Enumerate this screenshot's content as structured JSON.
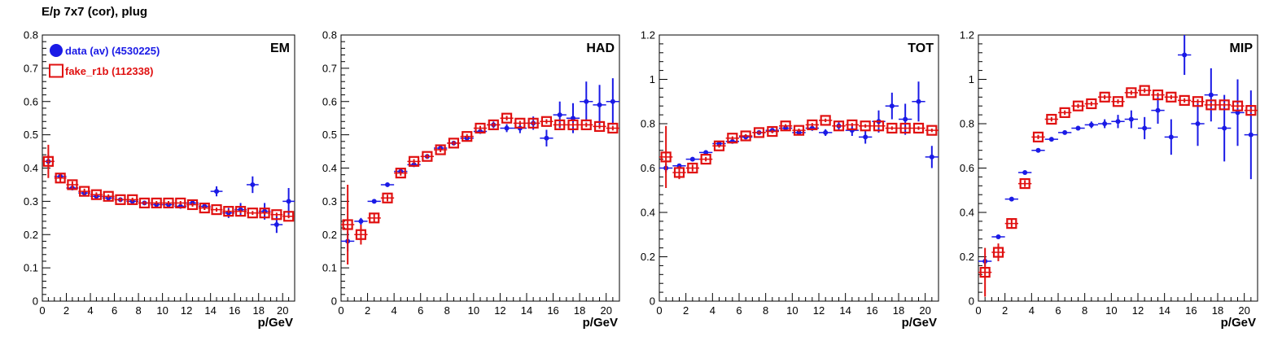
{
  "figure_title": "E/p 7x7 (cor), plug",
  "colors": {
    "data": "#1a1ae6",
    "fake": "#e01010",
    "axis": "#000000"
  },
  "legend": [
    {
      "label": "data (av) (4530225)",
      "marker": "filled-circle",
      "color": "#1a1ae6"
    },
    {
      "label": "fake_r1b (112338)",
      "marker": "open-square",
      "color": "#e01010"
    }
  ],
  "chart_data": [
    {
      "type": "scatter",
      "title": "EM",
      "xlabel": "p/GeV",
      "ylabel": "",
      "xlim": [
        0,
        21
      ],
      "ylim": [
        0,
        0.8
      ],
      "xticks": [
        0,
        2,
        4,
        6,
        8,
        10,
        12,
        14,
        16,
        18,
        20
      ],
      "yticks": [
        0,
        0.1,
        0.2,
        0.3,
        0.4,
        0.5,
        0.6,
        0.7,
        0.8
      ],
      "ytick_labels": [
        "0",
        "0.1",
        "0.2",
        "0.3",
        "0.4",
        "0.5",
        "0.6",
        "0.7",
        "0.8"
      ],
      "grid": false,
      "legend": "top-left",
      "series": [
        {
          "name": "data (av) (4530225)",
          "marker": "filled-circle",
          "x": [
            0.5,
            1.5,
            2.5,
            3.5,
            4.5,
            5.5,
            6.5,
            7.5,
            8.5,
            9.5,
            10.5,
            11.5,
            12.5,
            13.5,
            14.5,
            15.5,
            16.5,
            17.5,
            18.5,
            19.5,
            20.5
          ],
          "y": [
            0.42,
            0.375,
            0.34,
            0.325,
            0.315,
            0.31,
            0.305,
            0.3,
            0.295,
            0.29,
            0.29,
            0.285,
            0.295,
            0.285,
            0.33,
            0.265,
            0.275,
            0.35,
            0.27,
            0.23,
            0.3
          ],
          "err": [
            0.02,
            0.01,
            0.006,
            0.005,
            0.005,
            0.005,
            0.005,
            0.005,
            0.005,
            0.005,
            0.006,
            0.007,
            0.008,
            0.01,
            0.015,
            0.015,
            0.02,
            0.025,
            0.025,
            0.025,
            0.04
          ]
        },
        {
          "name": "fake_r1b (112338)",
          "marker": "open-square",
          "x": [
            0.5,
            1.5,
            2.5,
            3.5,
            4.5,
            5.5,
            6.5,
            7.5,
            8.5,
            9.5,
            10.5,
            11.5,
            12.5,
            13.5,
            14.5,
            15.5,
            16.5,
            17.5,
            18.5,
            19.5,
            20.5
          ],
          "y": [
            0.42,
            0.37,
            0.35,
            0.33,
            0.32,
            0.315,
            0.305,
            0.305,
            0.295,
            0.295,
            0.295,
            0.295,
            0.29,
            0.28,
            0.275,
            0.27,
            0.27,
            0.265,
            0.265,
            0.26,
            0.255
          ],
          "err": [
            0.05,
            0.015,
            0.01,
            0.008,
            0.007,
            0.006,
            0.006,
            0.006,
            0.006,
            0.006,
            0.006,
            0.006,
            0.006,
            0.006,
            0.006,
            0.006,
            0.006,
            0.006,
            0.006,
            0.006,
            0.006
          ]
        }
      ]
    },
    {
      "type": "scatter",
      "title": "HAD",
      "xlabel": "p/GeV",
      "ylabel": "",
      "xlim": [
        0,
        21
      ],
      "ylim": [
        0,
        0.8
      ],
      "xticks": [
        0,
        2,
        4,
        6,
        8,
        10,
        12,
        14,
        16,
        18,
        20
      ],
      "yticks": [
        0,
        0.1,
        0.2,
        0.3,
        0.4,
        0.5,
        0.6,
        0.7,
        0.8
      ],
      "ytick_labels": [
        "0",
        "0.1",
        "0.2",
        "0.3",
        "0.4",
        "0.5",
        "0.6",
        "0.7",
        "0.8"
      ],
      "grid": false,
      "series": [
        {
          "name": "data (av) (4530225)",
          "marker": "filled-circle",
          "x": [
            0.5,
            1.5,
            2.5,
            3.5,
            4.5,
            5.5,
            6.5,
            7.5,
            8.5,
            9.5,
            10.5,
            11.5,
            12.5,
            13.5,
            14.5,
            15.5,
            16.5,
            17.5,
            18.5,
            19.5,
            20.5
          ],
          "y": [
            0.18,
            0.24,
            0.3,
            0.35,
            0.39,
            0.41,
            0.435,
            0.46,
            0.475,
            0.49,
            0.51,
            0.53,
            0.52,
            0.52,
            0.535,
            0.49,
            0.56,
            0.55,
            0.6,
            0.59,
            0.6
          ],
          "err": [
            0.03,
            0.01,
            0.006,
            0.005,
            0.005,
            0.005,
            0.005,
            0.005,
            0.006,
            0.006,
            0.007,
            0.01,
            0.012,
            0.015,
            0.02,
            0.025,
            0.04,
            0.045,
            0.06,
            0.06,
            0.07
          ]
        },
        {
          "name": "fake_r1b (112338)",
          "marker": "open-square",
          "x": [
            0.5,
            1.5,
            2.5,
            3.5,
            4.5,
            5.5,
            6.5,
            7.5,
            8.5,
            9.5,
            10.5,
            11.5,
            12.5,
            13.5,
            14.5,
            15.5,
            16.5,
            17.5,
            18.5,
            19.5,
            20.5
          ],
          "y": [
            0.23,
            0.2,
            0.25,
            0.31,
            0.385,
            0.42,
            0.435,
            0.455,
            0.475,
            0.495,
            0.52,
            0.53,
            0.55,
            0.535,
            0.535,
            0.54,
            0.53,
            0.53,
            0.53,
            0.525,
            0.52
          ],
          "err": [
            0.12,
            0.03,
            0.015,
            0.01,
            0.008,
            0.007,
            0.007,
            0.007,
            0.007,
            0.007,
            0.007,
            0.007,
            0.007,
            0.007,
            0.007,
            0.007,
            0.007,
            0.007,
            0.007,
            0.007,
            0.007
          ]
        }
      ]
    },
    {
      "type": "scatter",
      "title": "TOT",
      "xlabel": "p/GeV",
      "ylabel": "",
      "xlim": [
        0,
        21
      ],
      "ylim": [
        0,
        1.2
      ],
      "xticks": [
        0,
        2,
        4,
        6,
        8,
        10,
        12,
        14,
        16,
        18,
        20
      ],
      "yticks": [
        0,
        0.2,
        0.4,
        0.6,
        0.8,
        1.0,
        1.2
      ],
      "ytick_labels": [
        "0",
        "0.2",
        "0.4",
        "0.6",
        "0.8",
        "1",
        "1.2"
      ],
      "grid": false,
      "series": [
        {
          "name": "data (av) (4530225)",
          "marker": "filled-circle",
          "x": [
            0.5,
            1.5,
            2.5,
            3.5,
            4.5,
            5.5,
            6.5,
            7.5,
            8.5,
            9.5,
            10.5,
            11.5,
            12.5,
            13.5,
            14.5,
            15.5,
            16.5,
            17.5,
            18.5,
            19.5,
            20.5
          ],
          "y": [
            0.6,
            0.61,
            0.64,
            0.67,
            0.71,
            0.72,
            0.74,
            0.76,
            0.77,
            0.78,
            0.76,
            0.78,
            0.76,
            0.79,
            0.77,
            0.74,
            0.81,
            0.88,
            0.82,
            0.9,
            0.65
          ],
          "err": [
            0.02,
            0.01,
            0.006,
            0.006,
            0.006,
            0.006,
            0.006,
            0.007,
            0.008,
            0.009,
            0.01,
            0.012,
            0.015,
            0.02,
            0.025,
            0.03,
            0.05,
            0.06,
            0.07,
            0.09,
            0.05
          ]
        },
        {
          "name": "fake_r1b (112338)",
          "marker": "open-square",
          "x": [
            0.5,
            1.5,
            2.5,
            3.5,
            4.5,
            5.5,
            6.5,
            7.5,
            8.5,
            9.5,
            10.5,
            11.5,
            12.5,
            13.5,
            14.5,
            15.5,
            16.5,
            17.5,
            18.5,
            19.5,
            20.5
          ],
          "y": [
            0.65,
            0.58,
            0.6,
            0.64,
            0.7,
            0.735,
            0.745,
            0.76,
            0.765,
            0.79,
            0.77,
            0.795,
            0.815,
            0.79,
            0.795,
            0.79,
            0.79,
            0.78,
            0.78,
            0.78,
            0.77
          ],
          "err": [
            0.14,
            0.03,
            0.015,
            0.01,
            0.008,
            0.008,
            0.008,
            0.008,
            0.008,
            0.008,
            0.008,
            0.008,
            0.008,
            0.008,
            0.008,
            0.008,
            0.008,
            0.008,
            0.008,
            0.008,
            0.008
          ]
        }
      ]
    },
    {
      "type": "scatter",
      "title": "MIP",
      "xlabel": "p/GeV",
      "ylabel": "",
      "xlim": [
        0,
        21
      ],
      "ylim": [
        0,
        1.2
      ],
      "xticks": [
        0,
        2,
        4,
        6,
        8,
        10,
        12,
        14,
        16,
        18,
        20
      ],
      "yticks": [
        0,
        0.2,
        0.4,
        0.6,
        0.8,
        1.0,
        1.2
      ],
      "ytick_labels": [
        "0",
        "0.2",
        "0.4",
        "0.6",
        "0.8",
        "1",
        "1.2"
      ],
      "grid": false,
      "series": [
        {
          "name": "data (av) (4530225)",
          "marker": "filled-circle",
          "x": [
            0.5,
            1.5,
            2.5,
            3.5,
            4.5,
            5.5,
            6.5,
            7.5,
            8.5,
            9.5,
            10.5,
            11.5,
            12.5,
            13.5,
            14.5,
            15.5,
            16.5,
            17.5,
            18.5,
            19.5,
            20.5
          ],
          "y": [
            0.18,
            0.29,
            0.46,
            0.58,
            0.68,
            0.73,
            0.76,
            0.78,
            0.795,
            0.8,
            0.81,
            0.82,
            0.78,
            0.86,
            0.74,
            1.11,
            0.8,
            0.93,
            0.78,
            0.85,
            0.75
          ],
          "err": [
            0.02,
            0.008,
            0.006,
            0.006,
            0.006,
            0.007,
            0.008,
            0.01,
            0.015,
            0.02,
            0.03,
            0.04,
            0.05,
            0.06,
            0.08,
            0.09,
            0.1,
            0.12,
            0.15,
            0.15,
            0.2
          ]
        },
        {
          "name": "fake_r1b (112338)",
          "marker": "open-square",
          "x": [
            0.5,
            1.5,
            2.5,
            3.5,
            4.5,
            5.5,
            6.5,
            7.5,
            8.5,
            9.5,
            10.5,
            11.5,
            12.5,
            13.5,
            14.5,
            15.5,
            16.5,
            17.5,
            18.5,
            19.5,
            20.5
          ],
          "y": [
            0.13,
            0.22,
            0.35,
            0.53,
            0.74,
            0.82,
            0.85,
            0.88,
            0.89,
            0.92,
            0.9,
            0.94,
            0.95,
            0.93,
            0.92,
            0.905,
            0.9,
            0.885,
            0.885,
            0.88,
            0.86
          ],
          "err": [
            0.11,
            0.04,
            0.02,
            0.015,
            0.01,
            0.01,
            0.01,
            0.01,
            0.01,
            0.01,
            0.01,
            0.01,
            0.01,
            0.01,
            0.01,
            0.01,
            0.01,
            0.01,
            0.01,
            0.01,
            0.01
          ]
        }
      ]
    }
  ]
}
